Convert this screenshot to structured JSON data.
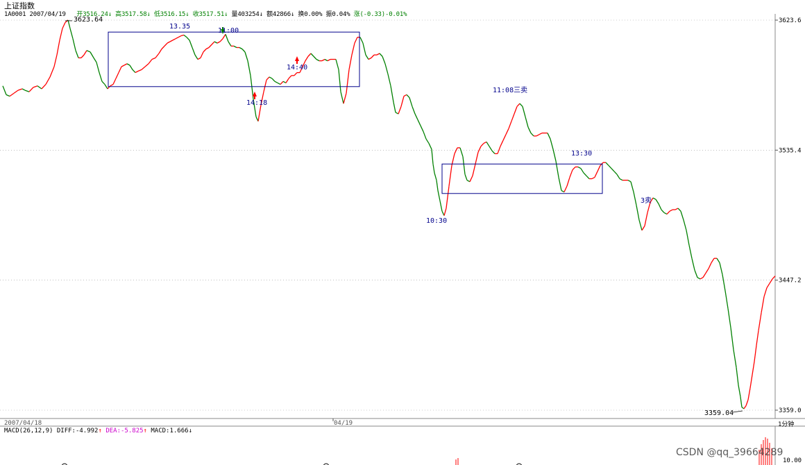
{
  "header": {
    "title": "上证指数",
    "code_date": "1A0001 2007/04/19",
    "open_label": "开",
    "open": "3516.24",
    "high_label": "高",
    "high": "3517.58",
    "low_label": "低",
    "low": "3516.15",
    "close_label": "收",
    "close": "3517.51",
    "volume_label": "量",
    "volume": "403254",
    "amount_label": "额",
    "amount": "42866",
    "turnover_label": "换",
    "turnover": "0.00%",
    "amplitude_label": "振",
    "amplitude": "0.04%",
    "change_label": "涨",
    "change": "(-0.33)-0.01%",
    "down_arrow": "↓"
  },
  "macd": {
    "label": "MACD(26,12,9)",
    "diff_label": "DIFF:",
    "diff": "-4.992",
    "dea_label": "DEA:",
    "dea": "-5.825",
    "macd_label": "MACD:",
    "macd": "1.666",
    "up_arrow": "↑",
    "down_arrow": "↓",
    "axis_label": "10.00"
  },
  "period_label": "1分钟",
  "watermark": "CSDN @qq_39664289",
  "colors": {
    "up": "#ff0000",
    "down": "#008000",
    "box": "#00008b",
    "annotation": "#00008b",
    "grid": "#999999"
  },
  "chart_data": {
    "type": "line",
    "subtype": "1-minute price line (red rising, green falling)",
    "instrument": "上证指数",
    "y_ticks": [
      "3623.6",
      "3535.4",
      "3447.2",
      "3359.0"
    ],
    "ylim": [
      3359.0,
      3623.6
    ],
    "x_labels": [
      "2007/04/18",
      "04/19"
    ],
    "grid": "dotted horizontal",
    "series": [
      {
        "points": [
          [
            0,
            3579
          ],
          [
            5,
            3573
          ],
          [
            10,
            3572
          ],
          [
            16,
            3574
          ],
          [
            22,
            3576
          ],
          [
            28,
            3577
          ],
          [
            32,
            3576
          ],
          [
            38,
            3575
          ],
          [
            44,
            3578
          ],
          [
            50,
            3579
          ],
          [
            56,
            3577
          ],
          [
            62,
            3580
          ],
          [
            68,
            3585
          ],
          [
            74,
            3592
          ],
          [
            78,
            3600
          ],
          [
            82,
            3610
          ],
          [
            86,
            3618
          ],
          [
            90,
            3622
          ],
          [
            94,
            3623.64
          ],
          [
            97,
            3618
          ],
          [
            101,
            3611
          ],
          [
            105,
            3603
          ],
          [
            109,
            3598
          ],
          [
            113,
            3598
          ],
          [
            117,
            3600
          ],
          [
            121,
            3603
          ],
          [
            126,
            3602
          ],
          [
            131,
            3598
          ],
          [
            135,
            3595
          ],
          [
            139,
            3588
          ],
          [
            143,
            3582
          ],
          [
            147,
            3580
          ],
          [
            151,
            3577
          ],
          [
            155,
            3579
          ],
          [
            159,
            3580
          ],
          [
            163,
            3584
          ],
          [
            167,
            3588
          ],
          [
            171,
            3592
          ],
          [
            175,
            3593
          ],
          [
            179,
            3594
          ],
          [
            183,
            3593
          ],
          [
            187,
            3590
          ],
          [
            191,
            3588
          ],
          [
            195,
            3589
          ],
          [
            200,
            3590
          ],
          [
            205,
            3592
          ],
          [
            210,
            3594
          ],
          [
            215,
            3597
          ],
          [
            220,
            3598
          ],
          [
            225,
            3601
          ],
          [
            229,
            3604
          ],
          [
            233,
            3606
          ],
          [
            237,
            3608
          ],
          [
            241,
            3609
          ],
          [
            245,
            3610
          ],
          [
            249,
            3611
          ],
          [
            253,
            3612
          ],
          [
            257,
            3613
          ],
          [
            261,
            3613.5
          ],
          [
            265,
            3612
          ],
          [
            269,
            3610
          ],
          [
            273,
            3605
          ],
          [
            277,
            3600
          ],
          [
            281,
            3597
          ],
          [
            285,
            3598
          ],
          [
            289,
            3602
          ],
          [
            293,
            3604
          ],
          [
            297,
            3605
          ],
          [
            301,
            3607
          ],
          [
            305,
            3609
          ],
          [
            309,
            3608
          ],
          [
            313,
            3609
          ],
          [
            317,
            3611
          ],
          [
            321,
            3614
          ],
          [
            325,
            3609
          ],
          [
            329,
            3606
          ],
          [
            333,
            3606
          ],
          [
            337,
            3605
          ],
          [
            341,
            3605
          ],
          [
            345,
            3604
          ],
          [
            349,
            3602
          ],
          [
            353,
            3596
          ],
          [
            357,
            3586
          ],
          [
            361,
            3570
          ],
          [
            365,
            3558
          ],
          [
            368,
            3555
          ],
          [
            372,
            3566
          ],
          [
            376,
            3575
          ],
          [
            380,
            3583
          ],
          [
            384,
            3585
          ],
          [
            388,
            3584
          ],
          [
            392,
            3582
          ],
          [
            396,
            3581
          ],
          [
            400,
            3580
          ],
          [
            404,
            3582
          ],
          [
            408,
            3581
          ],
          [
            412,
            3584
          ],
          [
            416,
            3586
          ],
          [
            420,
            3586
          ],
          [
            424,
            3588
          ],
          [
            428,
            3588
          ],
          [
            432,
            3592
          ],
          [
            436,
            3596
          ],
          [
            440,
            3599
          ],
          [
            444,
            3601
          ],
          [
            448,
            3599
          ],
          [
            452,
            3597
          ],
          [
            456,
            3596
          ],
          [
            460,
            3596
          ],
          [
            464,
            3597
          ],
          [
            468,
            3596
          ],
          [
            472,
            3597
          ],
          [
            476,
            3597
          ],
          [
            480,
            3597
          ],
          [
            484,
            3590
          ],
          [
            487,
            3575
          ],
          [
            491,
            3567
          ],
          [
            495,
            3574
          ],
          [
            499,
            3590
          ],
          [
            503,
            3600
          ],
          [
            507,
            3608
          ],
          [
            511,
            3612
          ],
          [
            515,
            3612
          ],
          [
            519,
            3608
          ],
          [
            523,
            3600
          ],
          [
            527,
            3597
          ],
          [
            531,
            3598
          ],
          [
            535,
            3600
          ],
          [
            539,
            3600
          ],
          [
            543,
            3601
          ],
          [
            547,
            3599
          ],
          [
            551,
            3594
          ],
          [
            555,
            3587
          ],
          [
            559,
            3579
          ],
          [
            563,
            3568
          ],
          [
            566,
            3561
          ],
          [
            570,
            3560
          ],
          [
            574,
            3565
          ],
          [
            578,
            3572
          ],
          [
            582,
            3573
          ],
          [
            586,
            3571
          ],
          [
            590,
            3565
          ],
          [
            594,
            3560
          ],
          [
            598,
            3556
          ],
          [
            602,
            3552
          ],
          [
            606,
            3548
          ],
          [
            610,
            3543
          ],
          [
            614,
            3540
          ],
          [
            618,
            3536
          ],
          [
            620,
            3526
          ],
          [
            622,
            3520
          ],
          [
            625,
            3515
          ],
          [
            627,
            3508
          ],
          [
            630,
            3501
          ],
          [
            633,
            3494
          ],
          [
            636,
            3491
          ],
          [
            639,
            3496
          ],
          [
            643,
            3511
          ],
          [
            647,
            3525
          ],
          [
            651,
            3533
          ],
          [
            655,
            3537
          ],
          [
            659,
            3537
          ],
          [
            663,
            3531
          ],
          [
            666,
            3519
          ],
          [
            669,
            3515
          ],
          [
            673,
            3514
          ],
          [
            677,
            3518
          ],
          [
            681,
            3526
          ],
          [
            685,
            3534
          ],
          [
            689,
            3538
          ],
          [
            693,
            3540
          ],
          [
            697,
            3541
          ],
          [
            701,
            3538
          ],
          [
            705,
            3535
          ],
          [
            709,
            3533
          ],
          [
            713,
            3533
          ],
          [
            717,
            3538
          ],
          [
            721,
            3542
          ],
          [
            725,
            3546
          ],
          [
            729,
            3550
          ],
          [
            733,
            3555
          ],
          [
            737,
            3560
          ],
          [
            741,
            3565
          ],
          [
            745,
            3567
          ],
          [
            749,
            3565
          ],
          [
            753,
            3558
          ],
          [
            757,
            3551
          ],
          [
            761,
            3547
          ],
          [
            765,
            3545
          ],
          [
            769,
            3545
          ],
          [
            773,
            3546
          ],
          [
            777,
            3547
          ],
          [
            781,
            3547
          ],
          [
            785,
            3547
          ],
          [
            789,
            3543
          ],
          [
            793,
            3536
          ],
          [
            797,
            3528
          ],
          [
            801,
            3517
          ],
          [
            805,
            3508
          ],
          [
            809,
            3507
          ],
          [
            813,
            3511
          ],
          [
            817,
            3517
          ],
          [
            821,
            3522
          ],
          [
            825,
            3524
          ],
          [
            829,
            3524
          ],
          [
            833,
            3523
          ],
          [
            837,
            3520
          ],
          [
            841,
            3518
          ],
          [
            845,
            3516
          ],
          [
            849,
            3516
          ],
          [
            853,
            3517
          ],
          [
            857,
            3521
          ],
          [
            861,
            3525
          ],
          [
            865,
            3527
          ],
          [
            869,
            3527
          ],
          [
            873,
            3525
          ],
          [
            877,
            3523
          ],
          [
            881,
            3521
          ],
          [
            885,
            3519
          ],
          [
            889,
            3516
          ],
          [
            893,
            3515
          ],
          [
            897,
            3515
          ],
          [
            901,
            3515
          ],
          [
            905,
            3514
          ],
          [
            909,
            3507
          ],
          [
            913,
            3498
          ],
          [
            917,
            3488
          ],
          [
            921,
            3481
          ],
          [
            925,
            3484
          ],
          [
            929,
            3493
          ],
          [
            933,
            3500
          ],
          [
            937,
            3503
          ],
          [
            941,
            3502
          ],
          [
            945,
            3499
          ],
          [
            949,
            3495
          ],
          [
            953,
            3493
          ],
          [
            957,
            3492
          ],
          [
            961,
            3494
          ],
          [
            965,
            3495
          ],
          [
            969,
            3495
          ],
          [
            973,
            3496
          ],
          [
            977,
            3494
          ],
          [
            981,
            3488
          ],
          [
            985,
            3481
          ],
          [
            989,
            3471
          ],
          [
            993,
            3462
          ],
          [
            997,
            3454
          ],
          [
            1001,
            3449
          ],
          [
            1005,
            3448
          ],
          [
            1009,
            3449
          ],
          [
            1013,
            3452
          ],
          [
            1017,
            3455
          ],
          [
            1021,
            3459
          ],
          [
            1025,
            3462
          ],
          [
            1029,
            3462
          ],
          [
            1033,
            3459
          ],
          [
            1037,
            3451
          ],
          [
            1041,
            3440
          ],
          [
            1045,
            3428
          ],
          [
            1049,
            3415
          ],
          [
            1053,
            3400
          ],
          [
            1057,
            3388
          ],
          [
            1060,
            3376
          ],
          [
            1063,
            3368
          ],
          [
            1065,
            3361
          ],
          [
            1068,
            3360
          ],
          [
            1071,
            3362
          ],
          [
            1074,
            3366
          ],
          [
            1077,
            3374
          ],
          [
            1080,
            3383
          ],
          [
            1083,
            3392
          ],
          [
            1086,
            3403
          ],
          [
            1089,
            3413
          ],
          [
            1093,
            3425
          ],
          [
            1097,
            3436
          ],
          [
            1101,
            3442
          ],
          [
            1105,
            3445
          ],
          [
            1109,
            3448
          ],
          [
            1113,
            3450
          ]
        ]
      }
    ],
    "boxes": [
      {
        "x": [
          156,
          518
        ],
        "y": [
          3578.5,
          3615.5
        ]
      },
      {
        "x": [
          637,
          868
        ],
        "y": [
          3506.0,
          3526.0
        ]
      }
    ],
    "annotations": [
      {
        "text": "13.35"
      },
      {
        "text": "11:00"
      },
      {
        "text": "14:18"
      },
      {
        "text": "14:40"
      },
      {
        "text": "11:08三卖"
      },
      {
        "text": "13:30"
      },
      {
        "text": "10:30"
      },
      {
        "text": "3卖"
      },
      {
        "text": "3623.64"
      },
      {
        "text": "3359.04"
      }
    ]
  }
}
